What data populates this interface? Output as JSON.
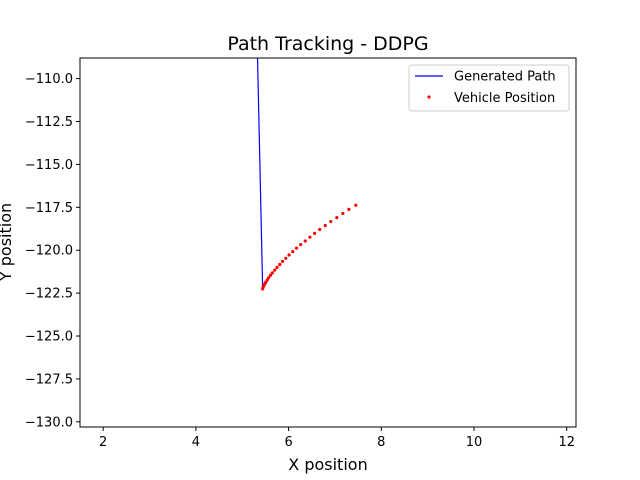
{
  "chart_data": {
    "type": "line",
    "title": "Path Tracking - DDPG",
    "xlabel": "X position",
    "ylabel": "Y position",
    "xlim": [
      1.5,
      12.2
    ],
    "ylim": [
      -130.3,
      -108.8
    ],
    "xticks": [
      2,
      4,
      6,
      8,
      10,
      12
    ],
    "xtick_labels": [
      "2",
      "4",
      "6",
      "8",
      "10",
      "12"
    ],
    "yticks": [
      -110.0,
      -112.5,
      -115.0,
      -117.5,
      -120.0,
      -122.5,
      -125.0,
      -127.5,
      -130.0
    ],
    "ytick_labels": [
      "−110.0",
      "−112.5",
      "−115.0",
      "−117.5",
      "−120.0",
      "−122.5",
      "−125.0",
      "−127.5",
      "−130.0"
    ],
    "grid": false,
    "legend_position": "top-right",
    "series": [
      {
        "name": "Generated Path",
        "kind": "line",
        "color": "#0000ff",
        "x": [
          5.33,
          5.44,
          5.44
        ],
        "y": [
          -108.8,
          -122.2,
          -122.25
        ]
      },
      {
        "name": "Vehicle Position",
        "kind": "scatter",
        "color": "#ff0000",
        "x": [
          5.44,
          5.45,
          5.47,
          5.49,
          5.51,
          5.54,
          5.57,
          5.61,
          5.65,
          5.7,
          5.75,
          5.81,
          5.87,
          5.94,
          6.01,
          6.09,
          6.17,
          6.26,
          6.36,
          6.46,
          6.56,
          6.67,
          6.79,
          6.91,
          7.04,
          7.17,
          7.3,
          7.45
        ],
        "y": [
          -122.25,
          -122.15,
          -122.05,
          -121.95,
          -121.85,
          -121.73,
          -121.6,
          -121.46,
          -121.32,
          -121.16,
          -121.0,
          -120.83,
          -120.65,
          -120.47,
          -120.28,
          -120.08,
          -119.88,
          -119.67,
          -119.46,
          -119.24,
          -119.02,
          -118.79,
          -118.56,
          -118.33,
          -118.1,
          -117.86,
          -117.62,
          -117.38
        ]
      }
    ]
  }
}
